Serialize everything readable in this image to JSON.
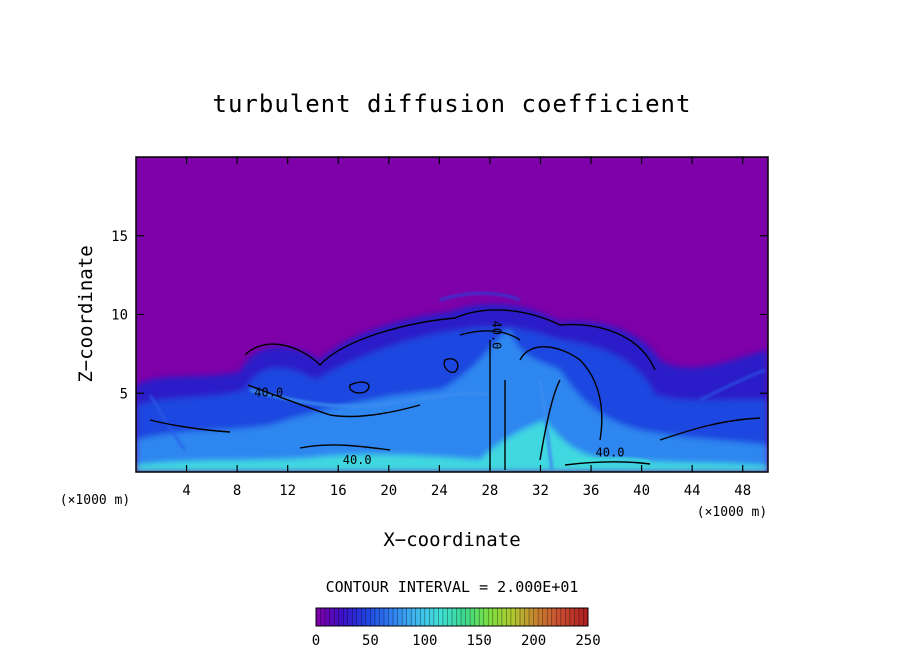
{
  "chart_data": {
    "type": "heatmap",
    "title": "turbulent diffusion coefficient",
    "xlabel": "X−coordinate",
    "ylabel": "Z−coordinate",
    "x_unit": "(×1000 m)",
    "z_unit": "(×1000 m)",
    "xlim": [
      0,
      50
    ],
    "ylim": [
      0,
      20
    ],
    "x_ticks": [
      4,
      8,
      12,
      16,
      20,
      24,
      28,
      32,
      36,
      40,
      44,
      48
    ],
    "y_ticks": [
      5,
      10,
      15
    ],
    "contour_interval_text": "CONTOUR INTERVAL = 2.000E+01",
    "contour_interval": 20,
    "contour_labels": [
      {
        "text": "40.0",
        "x": 10.5,
        "z": 4.8
      },
      {
        "text": "40.0",
        "x": 17.5,
        "z": 0.5
      },
      {
        "text": "40.0",
        "x": 28.2,
        "z": 8.7
      },
      {
        "text": "40.0",
        "x": 37.5,
        "z": 1.0
      }
    ],
    "colorbar": {
      "min": 0,
      "max": 250,
      "tick_values": [
        0,
        50,
        100,
        150,
        200,
        250
      ],
      "tick_labels": [
        "0",
        "50",
        "100",
        "150",
        "200",
        "250"
      ],
      "colors": [
        "#7e00a8",
        "#3a10c8",
        "#1f44e0",
        "#2f7ef0",
        "#3fb8f0",
        "#40e0d8",
        "#3cd890",
        "#7ae040",
        "#b0c830",
        "#c88030",
        "#c84a30",
        "#b02020"
      ]
    },
    "background_color": "#7e00a8"
  }
}
